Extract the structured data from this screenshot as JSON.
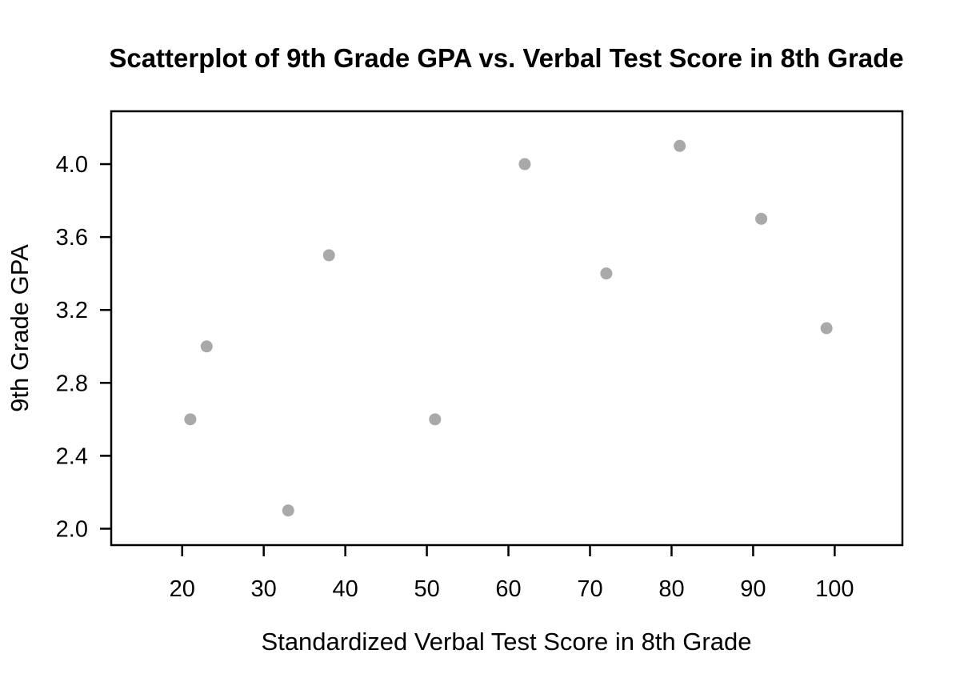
{
  "figure": {
    "background": "#FFFFFF"
  },
  "chart_data": {
    "type": "scatter",
    "title": "Scatterplot of 9th Grade GPA vs. Verbal Test Score in 8th Grade",
    "xlabel": "Standardized Verbal Test Score in 8th Grade",
    "ylabel": "9th Grade GPA",
    "x_tick_values": [
      20,
      30,
      40,
      50,
      60,
      70,
      80,
      90,
      100
    ],
    "x_tick_labels": [
      "20",
      "30",
      "40",
      "50",
      "60",
      "70",
      "80",
      "90",
      "100"
    ],
    "y_tick_values": [
      2.0,
      2.4,
      2.8,
      3.2,
      3.6,
      4.0
    ],
    "y_tick_labels": [
      "2.0",
      "2.4",
      "2.8",
      "3.2",
      "3.6",
      "4.0"
    ],
    "xlim": [
      11.3,
      108.3
    ],
    "ylim": [
      1.91,
      4.29
    ],
    "grid": false,
    "legend": null,
    "point_color": "#A9A9A9",
    "axis_color": "#000000",
    "points": [
      {
        "x": 21,
        "y": 2.6
      },
      {
        "x": 23,
        "y": 3.0
      },
      {
        "x": 33,
        "y": 2.1
      },
      {
        "x": 38,
        "y": 3.5
      },
      {
        "x": 51,
        "y": 2.6
      },
      {
        "x": 62,
        "y": 4.0
      },
      {
        "x": 72,
        "y": 3.4
      },
      {
        "x": 81,
        "y": 4.1
      },
      {
        "x": 91,
        "y": 3.7
      },
      {
        "x": 99,
        "y": 3.1
      }
    ]
  }
}
